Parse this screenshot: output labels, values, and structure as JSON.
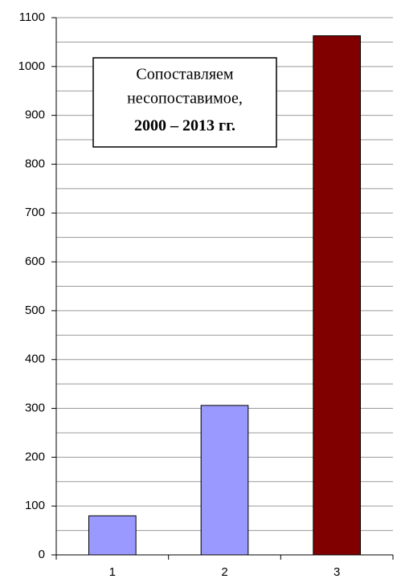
{
  "chart_data": {
    "type": "bar",
    "annotation": [
      "Сопоставляем",
      "несопоставимое,",
      "2000 – 2013 гг."
    ],
    "categories": [
      "1",
      "2",
      "3"
    ],
    "values": [
      80,
      306,
      1063
    ],
    "colors": [
      "#9999ff",
      "#9999ff",
      "#800000"
    ],
    "ylim": [
      0,
      1100
    ],
    "yticks": [
      0,
      100,
      200,
      300,
      400,
      500,
      600,
      700,
      800,
      900,
      1000,
      1100
    ],
    "y_minor_gridlines": [
      50,
      150,
      250,
      350,
      450,
      550,
      650,
      750,
      850,
      950,
      1050
    ],
    "grid": true
  }
}
